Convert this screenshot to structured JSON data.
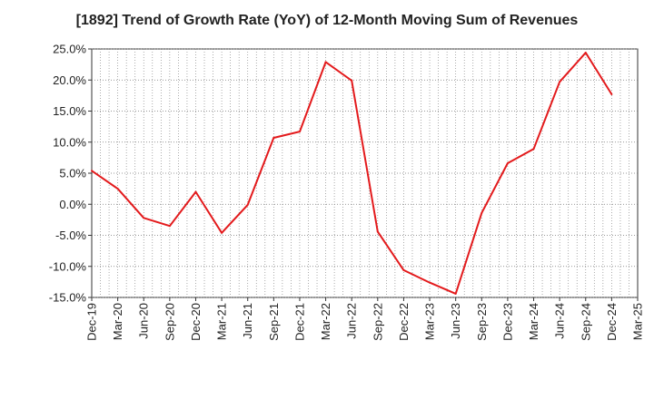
{
  "chart_data": {
    "type": "line",
    "title": "[1892]  Trend of Growth Rate (YoY) of 12-Month Moving Sum of Revenues",
    "xlabel": "",
    "ylabel": "",
    "x_ticks": [
      "Dec-19",
      "Mar-20",
      "Jun-20",
      "Sep-20",
      "Dec-20",
      "Mar-21",
      "Jun-21",
      "Sep-21",
      "Dec-21",
      "Mar-22",
      "Jun-22",
      "Sep-22",
      "Dec-22",
      "Mar-23",
      "Jun-23",
      "Sep-23",
      "Dec-23",
      "Mar-24",
      "Jun-24",
      "Sep-24",
      "Dec-24",
      "Mar-25"
    ],
    "y_ticks": [
      "25.0%",
      "20.0%",
      "15.0%",
      "10.0%",
      "5.0%",
      "0.0%",
      "-5.0%",
      "-10.0%",
      "-15.0%"
    ],
    "ylim": [
      -15,
      25
    ],
    "grid": true,
    "line_color": "#e31a1c",
    "series": [
      {
        "x": [
          "Dec-19",
          "Mar-20",
          "Jun-20",
          "Sep-20",
          "Dec-20",
          "Mar-21",
          "Jun-21",
          "Sep-21",
          "Dec-21",
          "Mar-22",
          "Jun-22",
          "Sep-22",
          "Dec-22",
          "Mar-23",
          "Jun-23",
          "Sep-23",
          "Dec-23",
          "Mar-24",
          "Jun-24",
          "Sep-24",
          "Dec-24"
        ],
        "values": [
          5.4,
          2.5,
          -2.2,
          -3.5,
          2.0,
          -4.6,
          -0.1,
          10.7,
          11.7,
          22.9,
          19.9,
          -4.4,
          -10.6,
          -12.6,
          -14.4,
          -1.4,
          6.6,
          8.9,
          19.7,
          24.4,
          17.7
        ]
      }
    ]
  }
}
